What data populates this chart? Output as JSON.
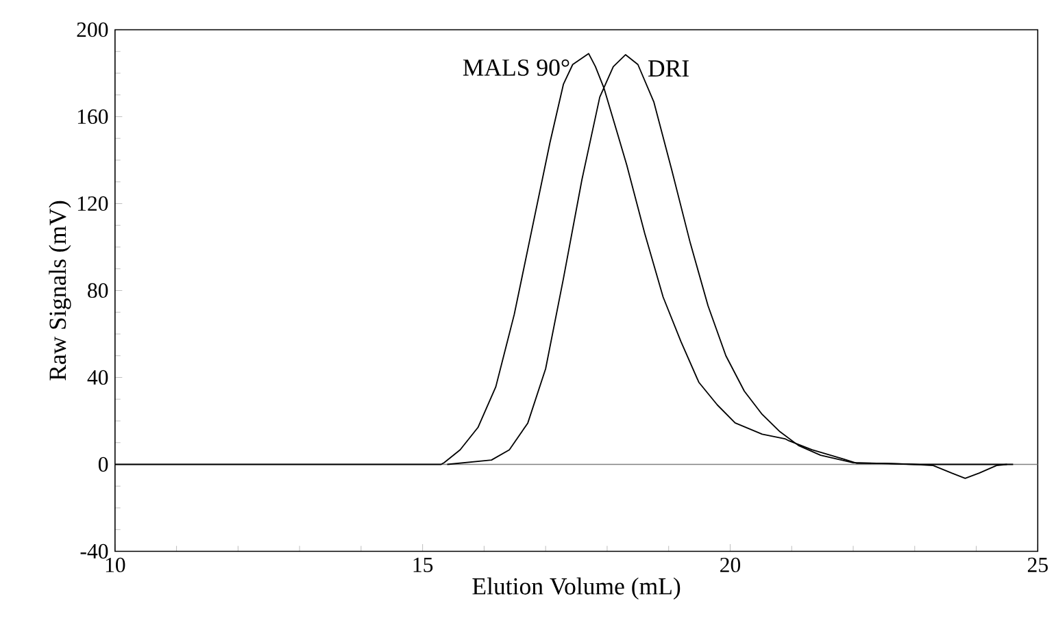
{
  "chart_data": {
    "type": "line",
    "xlabel": "Elution Volume (mL)",
    "ylabel": "Raw Signals (mV)",
    "xlim": [
      10,
      25
    ],
    "ylim": [
      -40,
      200
    ],
    "xticks": [
      10,
      15,
      20,
      25
    ],
    "yticks": [
      -40,
      0,
      40,
      80,
      120,
      160,
      200
    ],
    "grid": false,
    "legend": false,
    "marker": "none",
    "line_style": "solid",
    "ref_lines": [
      {
        "axis": "y",
        "value": 0,
        "color": "#808080"
      }
    ],
    "series": [
      {
        "name": "MALS 90°",
        "color": "#000000",
        "x": [
          10,
          15.3,
          15.35,
          15.61,
          15.9,
          16.19,
          16.49,
          16.78,
          17.07,
          17.29,
          17.44,
          17.7,
          17.81,
          17.95,
          18.17,
          18.32,
          18.61,
          18.91,
          19.2,
          19.49,
          19.79,
          20.08,
          20.52,
          20.89,
          20.96,
          21.33,
          21.84,
          22.06,
          22.5,
          23,
          24.6
        ],
        "values": [
          0,
          0,
          0.8,
          6.7,
          17,
          35.7,
          69,
          108.5,
          148,
          175,
          184,
          189,
          183,
          173,
          152,
          137.6,
          106.4,
          77,
          56.5,
          37.8,
          27.4,
          19.1,
          13.9,
          11.8,
          10.8,
          6.7,
          2.5,
          0.5,
          0.5,
          0,
          0
        ]
      },
      {
        "name": "DRI",
        "color": "#000000",
        "x": [
          15.4,
          16.12,
          16.41,
          16.71,
          17.0,
          17.29,
          17.59,
          17.88,
          18.1,
          18.3,
          18.5,
          18.76,
          19.05,
          19.35,
          19.64,
          19.93,
          20.23,
          20.52,
          20.81,
          21.11,
          21.47,
          21.99,
          23.0,
          23.3,
          23.6,
          23.82,
          24.05,
          24.33,
          24.5
        ],
        "values": [
          0,
          2,
          6.7,
          19,
          44,
          85.6,
          131,
          169,
          183,
          188.5,
          184,
          166.7,
          135.5,
          102,
          73,
          50,
          33.7,
          23,
          15,
          8.7,
          4.2,
          0.8,
          0,
          -0.5,
          -4,
          -6.4,
          -4,
          -0.5,
          0
        ]
      }
    ]
  }
}
